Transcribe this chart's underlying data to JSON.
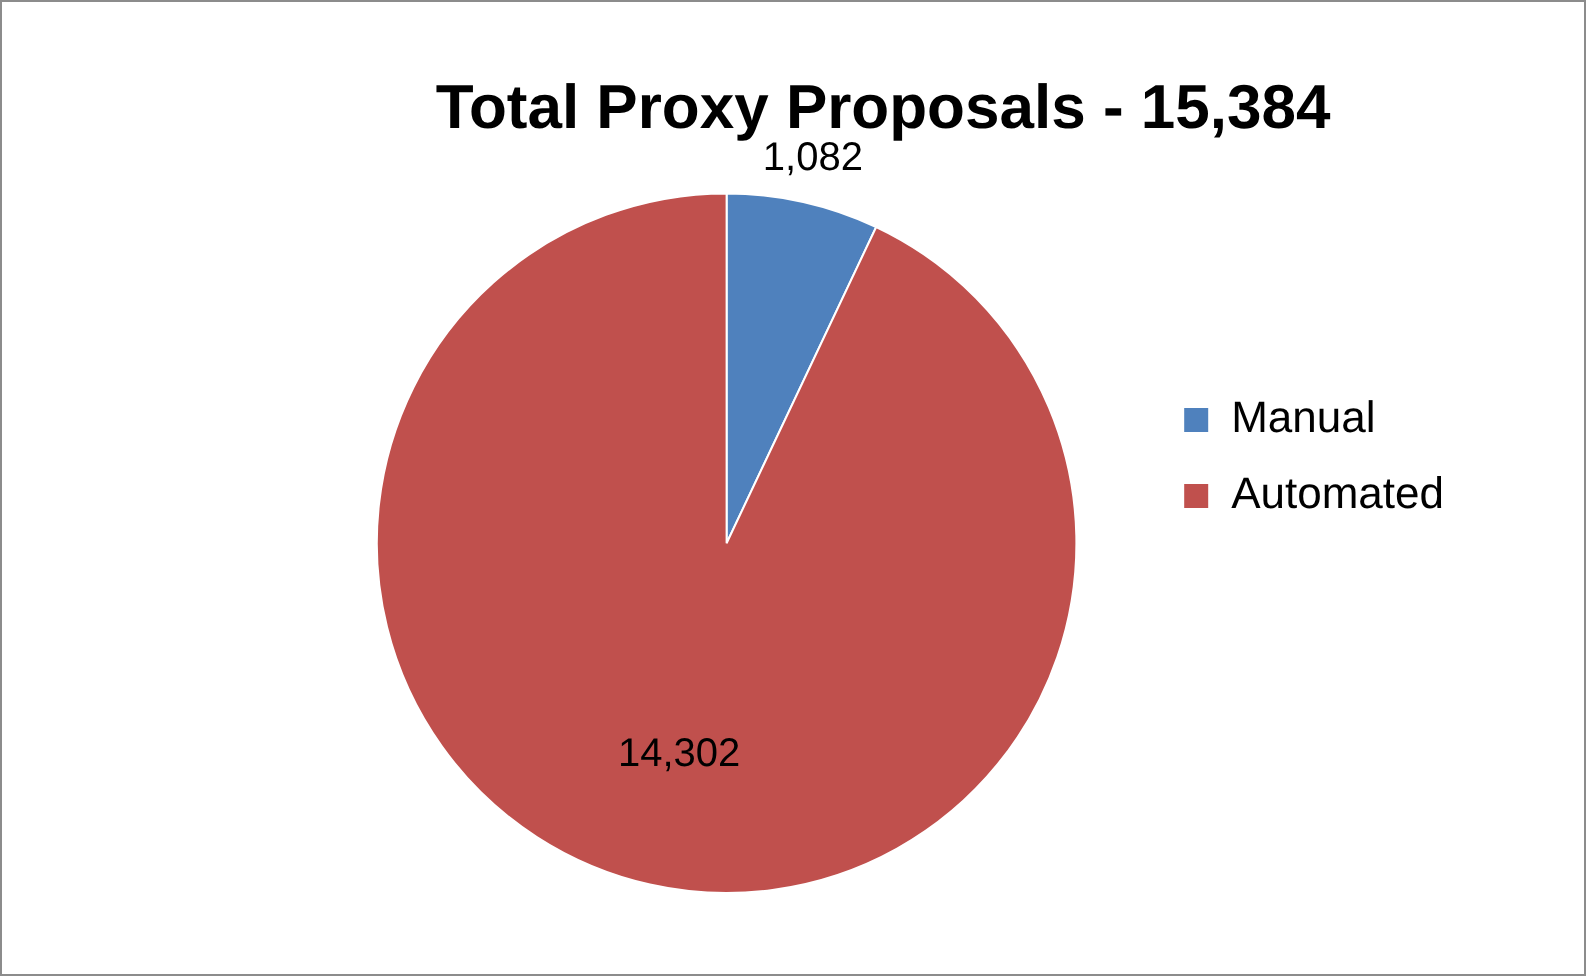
{
  "chart_data": {
    "type": "pie",
    "title": "Total Proxy Proposals - 15,384",
    "categories": [
      "Manual",
      "Automated"
    ],
    "values": [
      1082,
      14302
    ],
    "colors": [
      "#4f81bd",
      "#c0504d"
    ],
    "value_labels": [
      "1,082",
      "14,302"
    ],
    "legend": "right"
  }
}
